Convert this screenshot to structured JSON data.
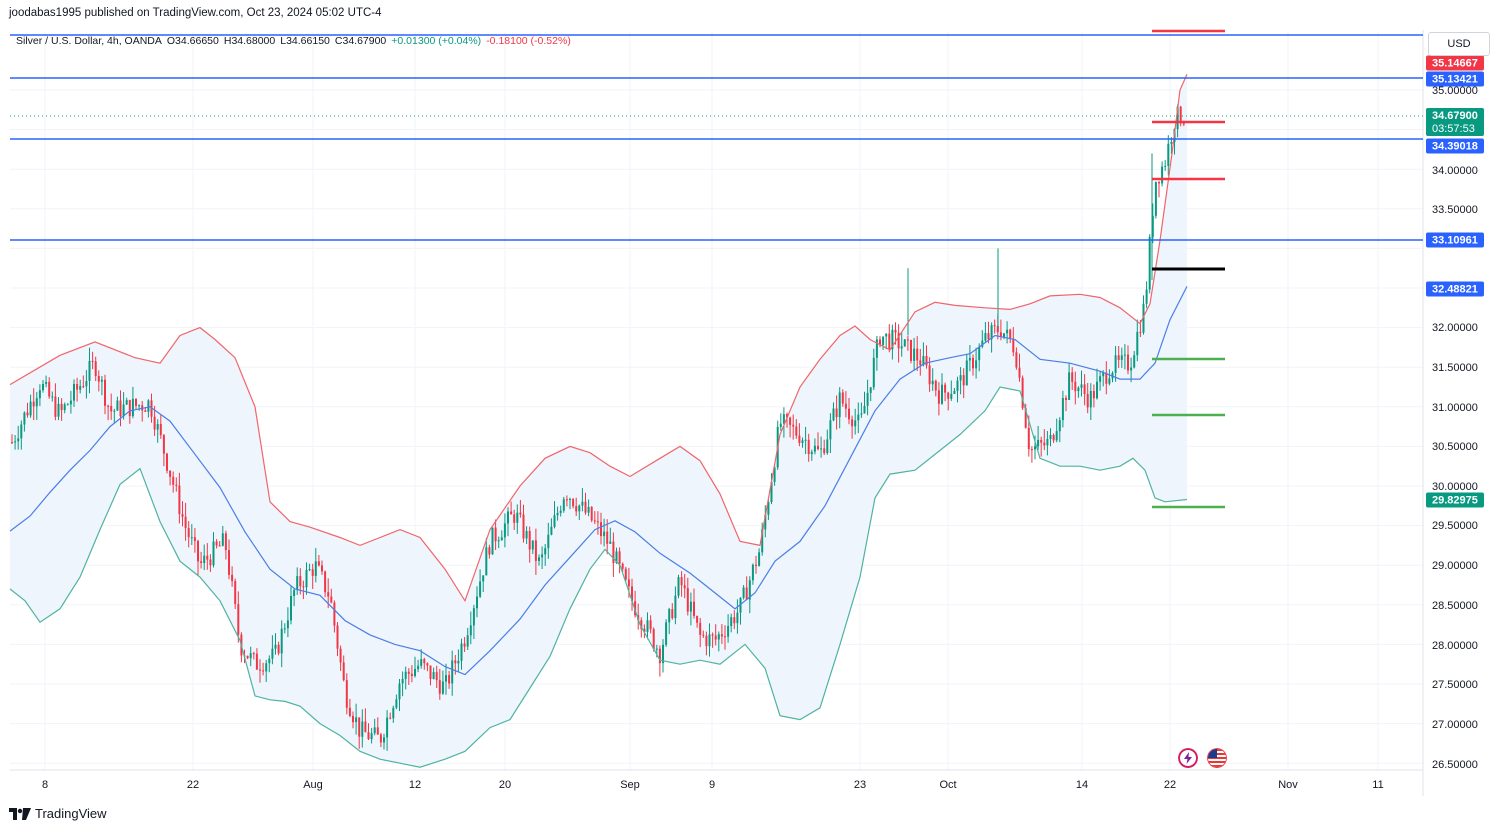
{
  "caption": "joodabas1995 published on TradingView.com, Oct 23, 2024 05:02 UTC-4",
  "legend": {
    "symbol": "Silver / U.S. Dollar, 4h, OANDA",
    "open": "O34.66650",
    "high": "H34.68000",
    "low": "L34.66150",
    "close": "C34.67900",
    "change_pos": "+0.01300 (+0.04%)",
    "change_neg": "-0.18100 (-0.52%)"
  },
  "currency_label": "USD",
  "footer_brand": "TradingView",
  "icons": {
    "flash": "flash-icon",
    "flag": "us-flag-icon",
    "logo": "tradingview-logo-icon"
  },
  "colors": {
    "up": "#089981",
    "down": "#f23645",
    "blue_line": "#2962ff",
    "basis": "#4a7ee8",
    "upper_band": "#f0656a",
    "lower_band": "#4fb3a0",
    "band_fill": "#eef5fc",
    "h_red": "#f23645",
    "h_green": "#4caf50",
    "h_black": "#000000"
  },
  "chart_data": {
    "type": "candlestick",
    "title": "Silver / U.S. Dollar, 4h, OANDA",
    "ylim": [
      26.5,
      35.6
    ],
    "y_ticks": [
      "35.00000",
      "34.00000",
      "33.50000",
      "32.00000",
      "31.50000",
      "31.00000",
      "30.50000",
      "30.00000",
      "29.50000",
      "29.00000",
      "28.50000",
      "28.00000",
      "27.50000",
      "27.00000",
      "26.50000"
    ],
    "x_ticks": [
      "8",
      "22",
      "Aug",
      "12",
      "20",
      "Sep",
      "9",
      "23",
      "Oct",
      "14",
      "22",
      "Nov",
      "11"
    ],
    "price_labels": [
      {
        "text": "35.14667",
        "color": "#f23645"
      },
      {
        "text": "35.13421",
        "color": "#2962ff"
      },
      {
        "text": "34.67900",
        "color": "#089981",
        "sub": "03:57:53"
      },
      {
        "text": "34.39018",
        "color": "#2962ff"
      },
      {
        "text": "33.10961",
        "color": "#2962ff"
      },
      {
        "text": "32.48821",
        "color": "#2962ff"
      },
      {
        "text": "29.82975",
        "color": "#089981"
      }
    ],
    "horizontal_rays": [
      35.8,
      35.13421,
      34.39018,
      33.10961
    ],
    "level_segments": [
      {
        "price": 35.82,
        "color": "red"
      },
      {
        "price": 34.56,
        "color": "red"
      },
      {
        "price": 33.88,
        "color": "red"
      },
      {
        "price": 32.73,
        "color": "black"
      },
      {
        "price": 31.59,
        "color": "green"
      },
      {
        "price": 30.88,
        "color": "green"
      },
      {
        "price": 29.73,
        "color": "green"
      }
    ],
    "last_price": 34.679,
    "bollinger": {
      "upper": [
        [
          10,
          31.28
        ],
        [
          60,
          31.65
        ],
        [
          95,
          31.82
        ],
        [
          135,
          31.62
        ],
        [
          160,
          31.55
        ],
        [
          180,
          31.9
        ],
        [
          200,
          32.0
        ],
        [
          215,
          31.85
        ],
        [
          235,
          31.62
        ],
        [
          255,
          31.0
        ],
        [
          270,
          29.8
        ],
        [
          290,
          29.55
        ],
        [
          310,
          29.48
        ],
        [
          340,
          29.35
        ],
        [
          360,
          29.25
        ],
        [
          380,
          29.35
        ],
        [
          400,
          29.45
        ],
        [
          420,
          29.35
        ],
        [
          445,
          28.95
        ],
        [
          465,
          28.55
        ],
        [
          490,
          29.45
        ],
        [
          520,
          30.0
        ],
        [
          545,
          30.35
        ],
        [
          570,
          30.5
        ],
        [
          590,
          30.42
        ],
        [
          610,
          30.25
        ],
        [
          630,
          30.12
        ],
        [
          660,
          30.35
        ],
        [
          680,
          30.5
        ],
        [
          700,
          30.32
        ],
        [
          720,
          29.9
        ],
        [
          740,
          29.3
        ],
        [
          760,
          29.25
        ],
        [
          780,
          30.65
        ],
        [
          800,
          31.25
        ],
        [
          820,
          31.6
        ],
        [
          840,
          31.9
        ],
        [
          855,
          32.02
        ],
        [
          870,
          31.85
        ],
        [
          890,
          31.72
        ],
        [
          915,
          32.2
        ],
        [
          935,
          32.32
        ],
        [
          955,
          32.28
        ],
        [
          985,
          32.25
        ],
        [
          1010,
          32.23
        ],
        [
          1030,
          32.3
        ],
        [
          1050,
          32.4
        ],
        [
          1080,
          32.42
        ],
        [
          1100,
          32.38
        ],
        [
          1120,
          32.25
        ],
        [
          1140,
          32.05
        ],
        [
          1150,
          32.3
        ],
        [
          1160,
          33.1
        ],
        [
          1172,
          34.2
        ],
        [
          1180,
          35.0
        ],
        [
          1187,
          35.2
        ]
      ],
      "lower": [
        [
          10,
          28.7
        ],
        [
          25,
          28.55
        ],
        [
          40,
          28.28
        ],
        [
          60,
          28.45
        ],
        [
          80,
          28.85
        ],
        [
          100,
          29.45
        ],
        [
          120,
          30.02
        ],
        [
          140,
          30.22
        ],
        [
          160,
          29.55
        ],
        [
          180,
          29.05
        ],
        [
          200,
          28.85
        ],
        [
          220,
          28.55
        ],
        [
          240,
          28.05
        ],
        [
          255,
          27.35
        ],
        [
          270,
          27.3
        ],
        [
          285,
          27.28
        ],
        [
          300,
          27.22
        ],
        [
          320,
          27.0
        ],
        [
          340,
          26.85
        ],
        [
          360,
          26.65
        ],
        [
          380,
          26.55
        ],
        [
          400,
          26.5
        ],
        [
          420,
          26.45
        ],
        [
          445,
          26.55
        ],
        [
          465,
          26.65
        ],
        [
          490,
          26.95
        ],
        [
          510,
          27.05
        ],
        [
          530,
          27.45
        ],
        [
          550,
          27.85
        ],
        [
          570,
          28.45
        ],
        [
          590,
          28.95
        ],
        [
          605,
          29.2
        ],
        [
          620,
          29.0
        ],
        [
          640,
          28.25
        ],
        [
          660,
          27.8
        ],
        [
          680,
          27.75
        ],
        [
          700,
          27.8
        ],
        [
          720,
          27.75
        ],
        [
          745,
          28.0
        ],
        [
          765,
          27.7
        ],
        [
          780,
          27.1
        ],
        [
          800,
          27.05
        ],
        [
          820,
          27.2
        ],
        [
          840,
          28.0
        ],
        [
          860,
          28.85
        ],
        [
          875,
          29.85
        ],
        [
          890,
          30.15
        ],
        [
          915,
          30.2
        ],
        [
          940,
          30.45
        ],
        [
          960,
          30.65
        ],
        [
          985,
          30.95
        ],
        [
          1000,
          31.25
        ],
        [
          1020,
          31.2
        ],
        [
          1040,
          30.35
        ],
        [
          1060,
          30.25
        ],
        [
          1080,
          30.25
        ],
        [
          1100,
          30.2
        ],
        [
          1120,
          30.25
        ],
        [
          1133,
          30.35
        ],
        [
          1145,
          30.2
        ],
        [
          1155,
          29.85
        ],
        [
          1165,
          29.8
        ],
        [
          1187,
          29.83
        ]
      ],
      "basis": [
        [
          10,
          29.43
        ],
        [
          30,
          29.62
        ],
        [
          50,
          29.92
        ],
        [
          70,
          30.2
        ],
        [
          90,
          30.45
        ],
        [
          110,
          30.75
        ],
        [
          130,
          30.95
        ],
        [
          150,
          31.0
        ],
        [
          170,
          30.82
        ],
        [
          195,
          30.4
        ],
        [
          220,
          29.98
        ],
        [
          245,
          29.42
        ],
        [
          270,
          28.95
        ],
        [
          295,
          28.7
        ],
        [
          320,
          28.62
        ],
        [
          345,
          28.3
        ],
        [
          370,
          28.12
        ],
        [
          395,
          28.0
        ],
        [
          420,
          27.92
        ],
        [
          445,
          27.72
        ],
        [
          465,
          27.62
        ],
        [
          490,
          27.92
        ],
        [
          520,
          28.32
        ],
        [
          545,
          28.75
        ],
        [
          570,
          29.1
        ],
        [
          595,
          29.45
        ],
        [
          615,
          29.56
        ],
        [
          635,
          29.42
        ],
        [
          660,
          29.15
        ],
        [
          690,
          28.9
        ],
        [
          715,
          28.65
        ],
        [
          735,
          28.45
        ],
        [
          755,
          28.65
        ],
        [
          775,
          29.05
        ],
        [
          800,
          29.3
        ],
        [
          825,
          29.75
        ],
        [
          850,
          30.35
        ],
        [
          875,
          30.95
        ],
        [
          900,
          31.35
        ],
        [
          925,
          31.55
        ],
        [
          950,
          31.62
        ],
        [
          970,
          31.67
        ],
        [
          995,
          31.9
        ],
        [
          1015,
          31.85
        ],
        [
          1040,
          31.6
        ],
        [
          1070,
          31.55
        ],
        [
          1100,
          31.45
        ],
        [
          1120,
          31.35
        ],
        [
          1140,
          31.35
        ],
        [
          1155,
          31.55
        ],
        [
          1170,
          32.1
        ],
        [
          1187,
          32.52
        ]
      ]
    }
  }
}
